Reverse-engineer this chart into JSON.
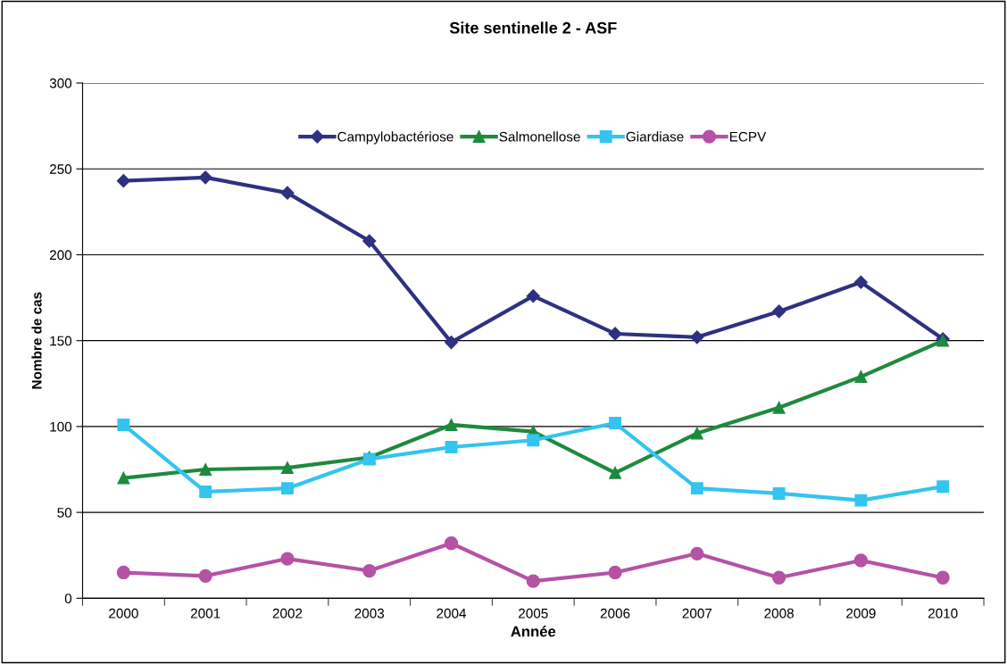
{
  "chart_data": {
    "type": "line",
    "title": "Site sentinelle 2 - ASF",
    "xlabel": "Année",
    "ylabel": "Nombre de cas",
    "categories": [
      "2000",
      "2001",
      "2002",
      "2003",
      "2004",
      "2005",
      "2006",
      "2007",
      "2008",
      "2009",
      "2010"
    ],
    "series": [
      {
        "name": "Campylobactériose",
        "color": "#2e3182",
        "marker": "diamond",
        "values": [
          243,
          245,
          236,
          208,
          149,
          176,
          154,
          152,
          167,
          184,
          151
        ]
      },
      {
        "name": "Salmonellose",
        "color": "#1e8a3e",
        "marker": "triangle",
        "values": [
          70,
          75,
          76,
          82,
          101,
          97,
          73,
          96,
          111,
          129,
          150
        ]
      },
      {
        "name": "Giardiase",
        "color": "#33c4f0",
        "marker": "square",
        "values": [
          101,
          62,
          64,
          81,
          88,
          92,
          102,
          64,
          61,
          57,
          65
        ]
      },
      {
        "name": "ECPV",
        "color": "#b552a6",
        "marker": "circle",
        "values": [
          15,
          13,
          23,
          16,
          32,
          10,
          15,
          26,
          12,
          22,
          12
        ]
      }
    ],
    "ylim": [
      0,
      300
    ],
    "yticks": [
      0,
      50,
      100,
      150,
      200,
      250,
      300
    ],
    "grid": "y",
    "legend": "top",
    "line_style": "solid"
  }
}
